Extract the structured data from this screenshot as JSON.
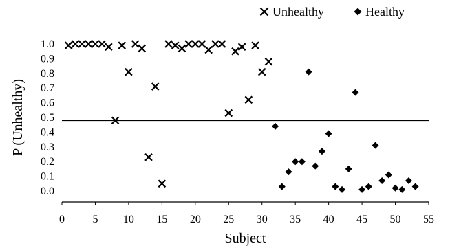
{
  "chart_data": {
    "type": "scatter",
    "xlabel": "Subject",
    "ylabel": "P (Unhealthy)",
    "xlim": [
      0,
      55
    ],
    "ylim": [
      0,
      1.0
    ],
    "x_ticks": [
      0,
      5,
      10,
      15,
      20,
      25,
      30,
      35,
      40,
      45,
      50,
      55
    ],
    "y_ticks": [
      0.0,
      0.1,
      0.2,
      0.3,
      0.4,
      0.5,
      0.6,
      0.7,
      0.8,
      0.9,
      1.0
    ],
    "x_tick_labels": [
      "0",
      "5",
      "10",
      "15",
      "20",
      "25",
      "30",
      "35",
      "40",
      "45",
      "50",
      "55"
    ],
    "y_tick_labels": [
      "0.0",
      "0.1",
      "0.2",
      "0.3",
      "0.4",
      "0.5",
      "0.6",
      "0.7",
      "0.8",
      "0.9",
      "1.0"
    ],
    "grid": false,
    "legend_position": "top-right",
    "threshold_line": 0.48,
    "series": [
      {
        "name": "Unhealthy",
        "marker": "x",
        "color": "#000000",
        "points": [
          [
            1,
            0.99
          ],
          [
            2,
            1.0
          ],
          [
            3,
            1.0
          ],
          [
            4,
            1.0
          ],
          [
            5,
            1.0
          ],
          [
            6,
            1.0
          ],
          [
            7,
            0.98
          ],
          [
            8,
            0.48
          ],
          [
            9,
            0.99
          ],
          [
            10,
            0.81
          ],
          [
            11,
            1.0
          ],
          [
            12,
            0.97
          ],
          [
            13,
            0.23
          ],
          [
            14,
            0.71
          ],
          [
            15,
            0.05
          ],
          [
            16,
            1.0
          ],
          [
            17,
            0.99
          ],
          [
            18,
            0.97
          ],
          [
            19,
            1.0
          ],
          [
            20,
            1.0
          ],
          [
            21,
            1.0
          ],
          [
            22,
            0.96
          ],
          [
            23,
            1.0
          ],
          [
            24,
            1.0
          ],
          [
            25,
            0.53
          ],
          [
            26,
            0.95
          ],
          [
            27,
            0.98
          ],
          [
            28,
            0.62
          ],
          [
            29,
            0.99
          ],
          [
            30,
            0.81
          ],
          [
            31,
            0.88
          ]
        ]
      },
      {
        "name": "Healthy",
        "marker": "diamond",
        "color": "#000000",
        "points": [
          [
            32,
            0.44
          ],
          [
            33,
            0.03
          ],
          [
            34,
            0.13
          ],
          [
            35,
            0.2
          ],
          [
            36,
            0.2
          ],
          [
            37,
            0.81
          ],
          [
            38,
            0.17
          ],
          [
            39,
            0.27
          ],
          [
            40,
            0.39
          ],
          [
            41,
            0.03
          ],
          [
            42,
            0.01
          ],
          [
            43,
            0.15
          ],
          [
            44,
            0.67
          ],
          [
            45,
            0.01
          ],
          [
            46,
            0.03
          ],
          [
            47,
            0.31
          ],
          [
            48,
            0.07
          ],
          [
            49,
            0.11
          ],
          [
            50,
            0.02
          ],
          [
            51,
            0.01
          ],
          [
            52,
            0.07
          ],
          [
            53,
            0.03
          ]
        ]
      }
    ]
  }
}
